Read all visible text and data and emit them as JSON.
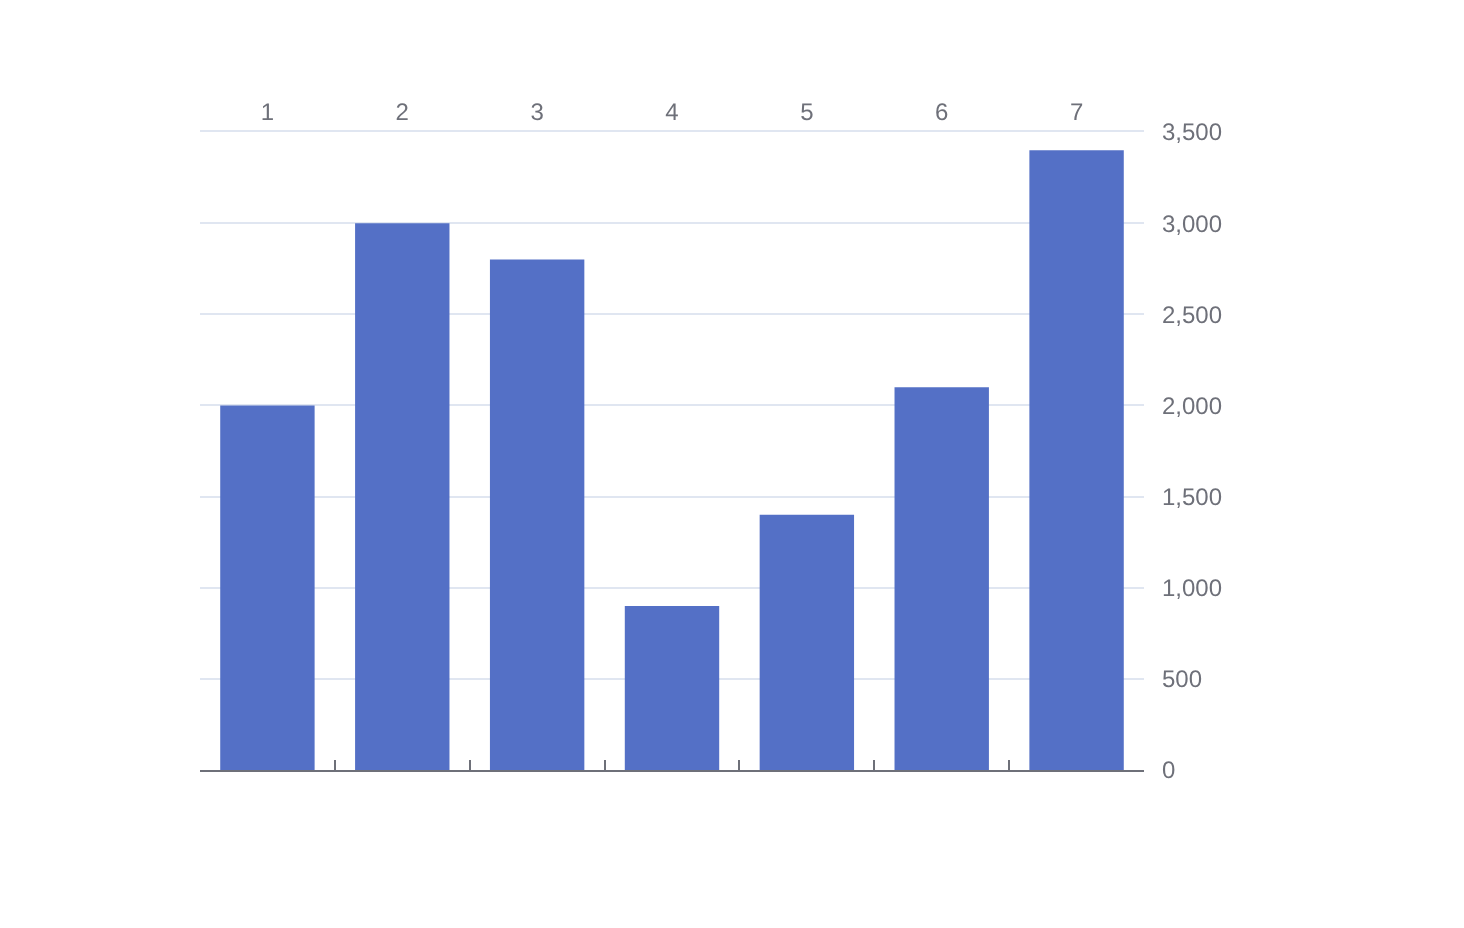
{
  "chart_data": {
    "type": "bar",
    "categories": [
      "1",
      "2",
      "3",
      "4",
      "5",
      "6",
      "7"
    ],
    "values": [
      2000,
      3000,
      2800,
      900,
      1400,
      2100,
      3400
    ],
    "color": "#5470c6",
    "ylim": [
      0,
      3500
    ],
    "yticks": [
      0,
      500,
      {
        "value": 1000,
        "label": "1,000"
      },
      {
        "value": 1500,
        "label": "1,500"
      },
      {
        "value": 2000,
        "label": "2,000"
      },
      {
        "value": 2500,
        "label": "2,500"
      },
      {
        "value": 3000,
        "label": "3,000"
      },
      {
        "value": 3500,
        "label": "3,500"
      }
    ],
    "grid": "y"
  }
}
